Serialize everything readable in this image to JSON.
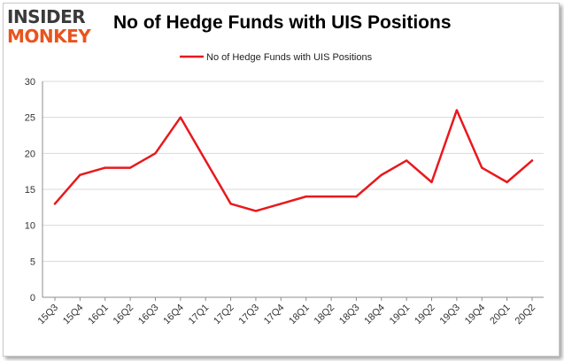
{
  "logo": {
    "line1": "INSIDER",
    "line2": "MONKEY"
  },
  "colors": {
    "series": "#e8191d",
    "grid": "#d9d9d9",
    "axis": "#8c8c8c",
    "logo_dark": "#3a3a3a",
    "logo_accent": "#e8541e"
  },
  "chart_data": {
    "type": "line",
    "title": "No of Hedge Funds with UIS Positions",
    "xlabel": "",
    "ylabel": "",
    "categories": [
      "15Q3",
      "15Q4",
      "16Q1",
      "16Q2",
      "16Q3",
      "16Q4",
      "17Q1",
      "17Q2",
      "17Q3",
      "17Q4",
      "18Q1",
      "18Q2",
      "18Q3",
      "18Q4",
      "19Q1",
      "19Q2",
      "19Q3",
      "19Q4",
      "20Q1",
      "20Q2"
    ],
    "series": [
      {
        "name": "No of Hedge Funds with UIS Positions",
        "values": [
          13,
          17,
          18,
          18,
          20,
          25,
          19,
          13,
          12,
          13,
          14,
          14,
          14,
          17,
          19,
          16,
          26,
          18,
          16,
          19
        ]
      }
    ],
    "ylim": [
      0,
      30
    ],
    "yticks": [
      0,
      5,
      10,
      15,
      20,
      25,
      30
    ],
    "grid": true,
    "legend": "top-center"
  }
}
